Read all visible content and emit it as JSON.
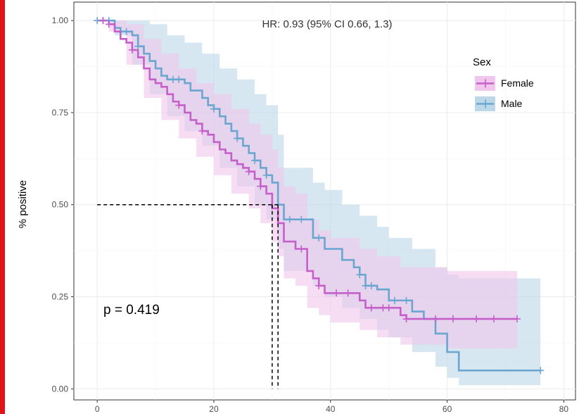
{
  "colors": {
    "Female": "#c55fc9",
    "Male": "#6aa6cf",
    "Female_fill": "#f0c6ec",
    "Male_fill": "#bcd7e8",
    "panel_border": "#333333",
    "grid": "#ebebeb",
    "sidebar_accent": "#e0141b"
  },
  "chart_data": {
    "type": "line",
    "subtype": "kaplan-meier",
    "ylabel": "% positive",
    "xlim": [
      -4,
      82
    ],
    "ylim": [
      -0.03,
      1.05
    ],
    "x_ticks": [
      0,
      20,
      40,
      60,
      80
    ],
    "y_ticks": [
      0.0,
      0.25,
      0.5,
      0.75,
      1.0
    ],
    "x_tick_labels": [
      "0",
      "20",
      "40",
      "60",
      "80"
    ],
    "y_tick_labels": [
      "0.00",
      "0.25",
      "0.50",
      "0.75",
      "1.00"
    ],
    "grid": true,
    "legend": {
      "title": "Sex",
      "position": "top-right",
      "entries": [
        "Female",
        "Male"
      ]
    },
    "annotations": {
      "hazard_ratio": "HR: 0.93 (95% CI 0.66, 1.3)",
      "pvalue": "p = 0.419"
    },
    "median_lines": {
      "y": 0.5,
      "x": [
        30,
        31
      ]
    },
    "series": [
      {
        "name": "Female",
        "steps": [
          [
            0,
            1.0
          ],
          [
            2,
            0.99
          ],
          [
            3,
            0.97
          ],
          [
            4,
            0.95
          ],
          [
            5,
            0.94
          ],
          [
            6,
            0.92
          ],
          [
            7,
            0.9
          ],
          [
            8,
            0.87
          ],
          [
            9,
            0.84
          ],
          [
            10,
            0.83
          ],
          [
            11,
            0.82
          ],
          [
            12,
            0.8
          ],
          [
            13,
            0.78
          ],
          [
            14,
            0.77
          ],
          [
            15,
            0.75
          ],
          [
            16,
            0.73
          ],
          [
            17,
            0.72
          ],
          [
            18,
            0.7
          ],
          [
            19,
            0.69
          ],
          [
            20,
            0.67
          ],
          [
            21,
            0.65
          ],
          [
            22,
            0.64
          ],
          [
            23,
            0.62
          ],
          [
            24,
            0.61
          ],
          [
            25,
            0.6
          ],
          [
            26,
            0.59
          ],
          [
            27,
            0.57
          ],
          [
            28,
            0.55
          ],
          [
            29,
            0.53
          ],
          [
            30,
            0.49
          ],
          [
            31,
            0.45
          ],
          [
            32,
            0.4
          ],
          [
            34,
            0.38
          ],
          [
            36,
            0.32
          ],
          [
            37,
            0.3
          ],
          [
            38,
            0.28
          ],
          [
            39,
            0.26
          ],
          [
            42,
            0.26
          ],
          [
            45,
            0.24
          ],
          [
            46,
            0.22
          ],
          [
            48,
            0.22
          ],
          [
            52,
            0.2
          ],
          [
            53,
            0.19
          ],
          [
            72,
            0.19
          ]
        ],
        "upper": [
          [
            0,
            1.0
          ],
          [
            2,
            1.0
          ],
          [
            5,
            0.99
          ],
          [
            8,
            0.95
          ],
          [
            11,
            0.91
          ],
          [
            14,
            0.87
          ],
          [
            17,
            0.83
          ],
          [
            20,
            0.8
          ],
          [
            23,
            0.76
          ],
          [
            26,
            0.72
          ],
          [
            28,
            0.69
          ],
          [
            30,
            0.65
          ],
          [
            31,
            0.6
          ],
          [
            32,
            0.55
          ],
          [
            34,
            0.53
          ],
          [
            36,
            0.46
          ],
          [
            38,
            0.43
          ],
          [
            40,
            0.41
          ],
          [
            45,
            0.38
          ],
          [
            48,
            0.36
          ],
          [
            52,
            0.33
          ],
          [
            60,
            0.32
          ],
          [
            72,
            0.32
          ]
        ],
        "lower": [
          [
            0,
            1.0
          ],
          [
            2,
            0.97
          ],
          [
            5,
            0.88
          ],
          [
            8,
            0.79
          ],
          [
            11,
            0.73
          ],
          [
            14,
            0.68
          ],
          [
            17,
            0.63
          ],
          [
            20,
            0.58
          ],
          [
            23,
            0.53
          ],
          [
            26,
            0.49
          ],
          [
            28,
            0.45
          ],
          [
            30,
            0.4
          ],
          [
            31,
            0.36
          ],
          [
            32,
            0.3
          ],
          [
            34,
            0.28
          ],
          [
            36,
            0.22
          ],
          [
            38,
            0.2
          ],
          [
            40,
            0.18
          ],
          [
            45,
            0.16
          ],
          [
            48,
            0.14
          ],
          [
            52,
            0.12
          ],
          [
            60,
            0.11
          ],
          [
            72,
            0.11
          ]
        ],
        "censor_x": [
          1,
          2,
          6,
          14,
          18,
          26,
          28,
          35,
          38,
          41,
          43,
          47,
          49,
          50,
          53,
          58,
          61,
          65,
          68,
          72
        ]
      },
      {
        "name": "Male",
        "steps": [
          [
            0,
            1.0
          ],
          [
            3,
            0.98
          ],
          [
            4,
            0.97
          ],
          [
            6,
            0.96
          ],
          [
            7,
            0.93
          ],
          [
            8,
            0.91
          ],
          [
            9,
            0.89
          ],
          [
            10,
            0.87
          ],
          [
            11,
            0.85
          ],
          [
            12,
            0.84
          ],
          [
            13,
            0.84
          ],
          [
            15,
            0.83
          ],
          [
            16,
            0.81
          ],
          [
            18,
            0.79
          ],
          [
            19,
            0.77
          ],
          [
            20,
            0.76
          ],
          [
            21,
            0.74
          ],
          [
            22,
            0.72
          ],
          [
            23,
            0.7
          ],
          [
            24,
            0.68
          ],
          [
            25,
            0.66
          ],
          [
            26,
            0.64
          ],
          [
            27,
            0.62
          ],
          [
            28,
            0.6
          ],
          [
            29,
            0.58
          ],
          [
            30,
            0.56
          ],
          [
            31,
            0.5
          ],
          [
            32,
            0.46
          ],
          [
            37,
            0.41
          ],
          [
            39,
            0.38
          ],
          [
            42,
            0.35
          ],
          [
            44,
            0.33
          ],
          [
            45,
            0.31
          ],
          [
            46,
            0.28
          ],
          [
            48,
            0.27
          ],
          [
            50,
            0.24
          ],
          [
            54,
            0.21
          ],
          [
            56,
            0.19
          ],
          [
            58,
            0.15
          ],
          [
            60,
            0.1
          ],
          [
            62,
            0.05
          ],
          [
            76,
            0.05
          ]
        ],
        "upper": [
          [
            0,
            1.0
          ],
          [
            3,
            1.0
          ],
          [
            6,
            1.0
          ],
          [
            9,
            0.99
          ],
          [
            12,
            0.96
          ],
          [
            15,
            0.94
          ],
          [
            18,
            0.91
          ],
          [
            21,
            0.87
          ],
          [
            24,
            0.84
          ],
          [
            27,
            0.8
          ],
          [
            29,
            0.77
          ],
          [
            31,
            0.69
          ],
          [
            32,
            0.6
          ],
          [
            37,
            0.56
          ],
          [
            39,
            0.54
          ],
          [
            42,
            0.5
          ],
          [
            45,
            0.47
          ],
          [
            48,
            0.44
          ],
          [
            50,
            0.41
          ],
          [
            54,
            0.38
          ],
          [
            58,
            0.33
          ],
          [
            60,
            0.31
          ],
          [
            62,
            0.3
          ],
          [
            76,
            0.3
          ]
        ],
        "lower": [
          [
            0,
            1.0
          ],
          [
            3,
            0.96
          ],
          [
            6,
            0.88
          ],
          [
            9,
            0.8
          ],
          [
            12,
            0.74
          ],
          [
            15,
            0.7
          ],
          [
            18,
            0.66
          ],
          [
            21,
            0.6
          ],
          [
            24,
            0.55
          ],
          [
            27,
            0.5
          ],
          [
            29,
            0.46
          ],
          [
            31,
            0.38
          ],
          [
            32,
            0.32
          ],
          [
            37,
            0.28
          ],
          [
            39,
            0.25
          ],
          [
            42,
            0.22
          ],
          [
            45,
            0.19
          ],
          [
            48,
            0.16
          ],
          [
            50,
            0.14
          ],
          [
            54,
            0.1
          ],
          [
            58,
            0.06
          ],
          [
            60,
            0.03
          ],
          [
            62,
            0.01
          ],
          [
            76,
            0.01
          ]
        ],
        "censor_x": [
          0,
          1,
          2,
          5,
          7,
          13,
          14,
          20,
          24,
          27,
          29,
          33,
          35,
          38,
          45,
          46,
          47,
          51,
          53,
          76
        ]
      }
    ]
  }
}
